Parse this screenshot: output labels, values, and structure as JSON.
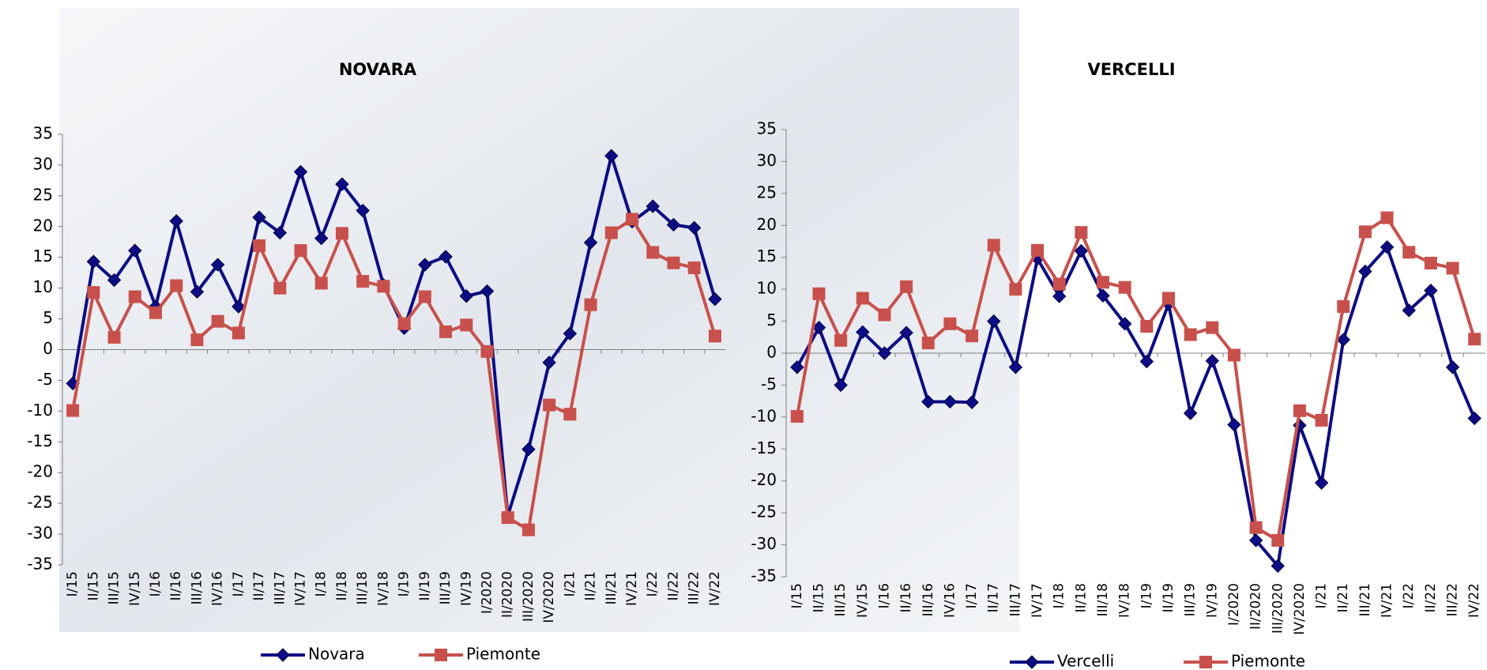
{
  "chart_data": [
    {
      "type": "line",
      "title": "NOVARA",
      "categories": [
        "I/15",
        "II/15",
        "III/15",
        "IV/15",
        "I/16",
        "II/16",
        "III/16",
        "IV/16",
        "I/17",
        "II/17",
        "III/17",
        "IV/17",
        "I/18",
        "II/18",
        "III/18",
        "IV/18",
        "I/19",
        "II/19",
        "III/19",
        "IV/19",
        "I/2020",
        "II/2020",
        "III/2020",
        "IV/2020",
        "I/21",
        "II/21",
        "III/21",
        "IV/21",
        "I/22",
        "II/22",
        "III/22",
        "IV/22"
      ],
      "series": [
        {
          "name": "Novara",
          "color": "#0c0c84",
          "marker": "diamond",
          "values": [
            -5.5,
            14.3,
            11.3,
            16.1,
            7,
            20.9,
            9.4,
            13.8,
            7,
            21.5,
            19,
            28.9,
            18.1,
            26.9,
            22.6,
            10.5,
            3.5,
            13.8,
            15.1,
            8.7,
            9.5,
            -27,
            -16.2,
            -2.1,
            2.6,
            17.4,
            31.5,
            20.8,
            23.3,
            20.3,
            19.8,
            8.2
          ]
        },
        {
          "name": "Piemonte",
          "color": "#c8504c",
          "marker": "square",
          "values": [
            -9.9,
            9.3,
            2,
            8.6,
            6,
            10.4,
            1.6,
            4.6,
            2.7,
            16.9,
            10,
            16.1,
            10.8,
            18.9,
            11.1,
            10.3,
            4.2,
            8.6,
            2.9,
            4,
            -0.3,
            -27.3,
            -29.3,
            -9,
            -10.5,
            7.3,
            19,
            21.2,
            15.8,
            14.1,
            13.3,
            2.2
          ]
        }
      ],
      "ylim": [
        -35,
        35
      ],
      "yticks": [
        -35,
        -30,
        -25,
        -20,
        -15,
        -10,
        -5,
        0,
        5,
        10,
        15,
        20,
        25,
        30,
        35
      ]
    },
    {
      "type": "line",
      "title": "VERCELLI",
      "categories": [
        "I/15",
        "II/15",
        "III/15",
        "IV/15",
        "I/16",
        "II/16",
        "III/16",
        "IV/16",
        "I/17",
        "II/17",
        "III/17",
        "IV/17",
        "I/18",
        "II/18",
        "III/18",
        "IV/18",
        "I/19",
        "II/19",
        "III/19",
        "IV/19",
        "I/2020",
        "II/2020",
        "III/2020",
        "IV/2020",
        "I/21",
        "II/21",
        "III/21",
        "IV/21",
        "I/22",
        "II/22",
        "III/22",
        "IV/22"
      ],
      "series": [
        {
          "name": "Vercelli",
          "color": "#0c0c84",
          "marker": "diamond",
          "values": [
            -2.2,
            4,
            -5,
            3.3,
            0,
            3.2,
            -7.6,
            -7.6,
            -7.7,
            5,
            -2.2,
            14.8,
            8.9,
            16,
            9,
            4.6,
            -1.3,
            7.7,
            -9.4,
            -1.2,
            -11.2,
            -29.3,
            -33.3,
            -11.3,
            -20.3,
            2.1,
            12.8,
            16.6,
            6.7,
            9.8,
            -2.2,
            -10.2
          ]
        },
        {
          "name": "Piemonte",
          "color": "#c8504c",
          "marker": "square",
          "values": [
            -9.9,
            9.3,
            2,
            8.6,
            6,
            10.4,
            1.6,
            4.6,
            2.7,
            16.9,
            10,
            16.1,
            10.8,
            18.9,
            11.1,
            10.3,
            4.2,
            8.6,
            2.9,
            4,
            -0.3,
            -27.3,
            -29.3,
            -9,
            -10.5,
            7.3,
            19,
            21.2,
            15.8,
            14.1,
            13.3,
            2.2
          ]
        }
      ],
      "ylim": [
        -35,
        35
      ],
      "yticks": [
        -35,
        -30,
        -25,
        -20,
        -15,
        -10,
        -5,
        0,
        5,
        10,
        15,
        20,
        25,
        30,
        35
      ]
    }
  ]
}
